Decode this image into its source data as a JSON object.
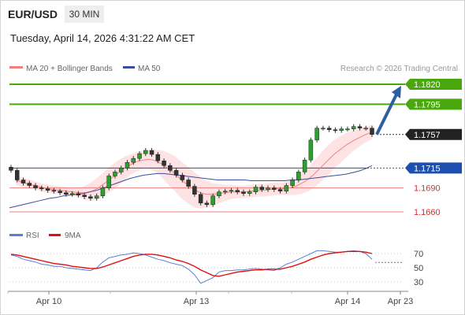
{
  "header": {
    "symbol": "EUR/USD",
    "timeframe": "30 MIN",
    "datetime": "Tuesday, April 14, 2026 4:31:22 AM CET"
  },
  "legend": {
    "ma20": "MA 20 + Bollinger Bands",
    "ma50": "MA 50",
    "credit": "Research © 2026 Trading Central",
    "rsi": "RSI",
    "ma9": "9MA"
  },
  "colors": {
    "ma20": "#f08080",
    "bollinger_fill": "#fde3e3",
    "ma50": "#3b4d9e",
    "resistance": "#4aa80e",
    "support": "#f08080",
    "pivot": "#1d4fb0",
    "arrow": "#2d5fa3",
    "last_price": "#222222",
    "rsi": "#5a7fd6",
    "rsi_ma": "#e01010"
  },
  "chart_data": [
    {
      "type": "candlestick",
      "instrument": "EUR/USD",
      "x_ticks": [
        "Apr 10",
        "Apr 13",
        "Apr 14",
        "Apr 23"
      ],
      "ylim": [
        1.163,
        1.184
      ],
      "levels": [
        {
          "value": 1.182,
          "label": "1.1820",
          "role": "resistance"
        },
        {
          "value": 1.1795,
          "label": "1.1795",
          "role": "resistance"
        },
        {
          "value": 1.1757,
          "label": "1.1757",
          "role": "last"
        },
        {
          "value": 1.1715,
          "label": "1.1715",
          "role": "pivot"
        },
        {
          "value": 1.169,
          "label": "1.1690",
          "role": "support"
        },
        {
          "value": 1.166,
          "label": "1.1660",
          "role": "support"
        }
      ],
      "target": 1.182,
      "series": [
        {
          "name": "MA 20 + Bollinger Bands",
          "close": [
            1.1712,
            1.17,
            1.1696,
            1.1693,
            1.169,
            1.1689,
            1.1687,
            1.1686,
            1.1684,
            1.1682,
            1.1683,
            1.1681,
            1.1679,
            1.1677,
            1.168,
            1.169,
            1.1705,
            1.171,
            1.1715,
            1.1722,
            1.1727,
            1.1733,
            1.1737,
            1.1732,
            1.1724,
            1.1718,
            1.1712,
            1.1706,
            1.17,
            1.1692,
            1.1682,
            1.1671,
            1.1669,
            1.168,
            1.1685,
            1.1686,
            1.1687,
            1.1685,
            1.1683,
            1.1685,
            1.1691,
            1.1688,
            1.169,
            1.1688,
            1.1686,
            1.1693,
            1.17,
            1.171,
            1.1725,
            1.175,
            1.1765,
            1.1765,
            1.1763,
            1.1762,
            1.1764,
            1.1764,
            1.1767,
            1.1765,
            1.1765,
            1.1757
          ],
          "ma": [
            1.17,
            1.1697,
            1.1695,
            1.1693,
            1.1691,
            1.1689,
            1.1688,
            1.1687,
            1.1686,
            1.1685,
            1.1684,
            1.1684,
            1.1686,
            1.169,
            1.1696,
            1.1702,
            1.1708,
            1.1714,
            1.1719,
            1.1723,
            1.1725,
            1.1726,
            1.1724,
            1.172,
            1.1714,
            1.1708,
            1.17,
            1.1694,
            1.1688,
            1.1684,
            1.1682,
            1.1682,
            1.1683,
            1.1684,
            1.1685,
            1.1685,
            1.1685,
            1.1686,
            1.1687,
            1.1687,
            1.1688,
            1.1689,
            1.1689,
            1.169,
            1.1692,
            1.1696,
            1.1701,
            1.1708,
            1.1716,
            1.1724,
            1.1732,
            1.1738,
            1.1744,
            1.1749,
            1.1753,
            1.1757,
            1.176
          ]
        },
        {
          "name": "MA 50",
          "ma": [
            1.1665,
            1.1667,
            1.1669,
            1.1671,
            1.1673,
            1.1675,
            1.1677,
            1.1678,
            1.168,
            1.1681,
            1.1682,
            1.1683,
            1.1685,
            1.1687,
            1.169,
            1.1693,
            1.1696,
            1.1699,
            1.1702,
            1.1704,
            1.1706,
            1.1707,
            1.1708,
            1.1708,
            1.1707,
            1.1706,
            1.1705,
            1.1704,
            1.1703,
            1.1702,
            1.1701,
            1.17,
            1.17,
            1.17,
            1.17,
            1.17,
            1.1699,
            1.1699,
            1.1699,
            1.1699,
            1.1699,
            1.1699,
            1.17,
            1.17,
            1.1701,
            1.1702,
            1.1703,
            1.1704,
            1.1705,
            1.1706,
            1.1707,
            1.1709,
            1.1711,
            1.1714,
            1.1718
          ]
        }
      ]
    },
    {
      "type": "line",
      "name": "RSI",
      "ylim": [
        20,
        80
      ],
      "y_ticks": [
        70,
        50,
        30
      ],
      "series": [
        {
          "name": "RSI",
          "values": [
            68,
            66,
            62,
            60,
            58,
            55,
            54,
            52,
            52,
            50,
            49,
            48,
            47,
            46,
            50,
            58,
            64,
            66,
            68,
            69,
            71,
            70,
            68,
            65,
            62,
            60,
            57,
            55,
            53,
            48,
            40,
            28,
            32,
            36,
            44,
            46,
            46,
            47,
            47,
            48,
            49,
            48,
            47,
            46,
            50,
            55,
            58,
            62,
            66,
            70,
            74,
            74,
            73,
            72,
            72,
            73,
            74,
            73,
            70,
            62
          ]
        },
        {
          "name": "9MA",
          "values": [
            69,
            68,
            66,
            64,
            62,
            60,
            58,
            56,
            55,
            54,
            52,
            51,
            50,
            49,
            49,
            51,
            54,
            57,
            60,
            63,
            66,
            68,
            69,
            69,
            68,
            66,
            64,
            61,
            59,
            56,
            52,
            47,
            43,
            39,
            38,
            40,
            42,
            44,
            45,
            46,
            47,
            47,
            48,
            48,
            48,
            50,
            52,
            55,
            58,
            62,
            65,
            68,
            70,
            71,
            72,
            73,
            73,
            73,
            72,
            70
          ]
        }
      ]
    }
  ]
}
